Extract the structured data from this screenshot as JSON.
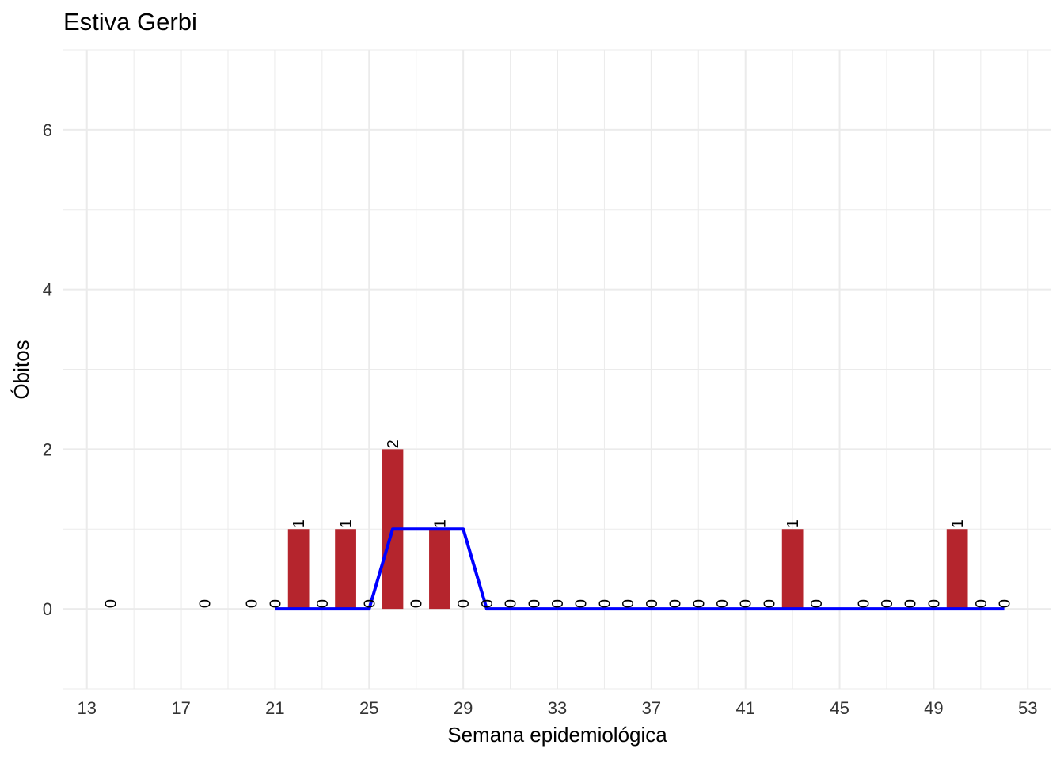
{
  "chart_data": {
    "type": "bar",
    "title": "Estiva Gerbi",
    "xlabel": "Semana epidemiológica",
    "ylabel": "Óbitos",
    "xlim": [
      12,
      54
    ],
    "ylim": [
      -1,
      7
    ],
    "x_ticks": [
      13,
      17,
      21,
      25,
      29,
      33,
      37,
      41,
      45,
      49,
      53
    ],
    "y_ticks": [
      0,
      2,
      4,
      6
    ],
    "grid": true,
    "bar_color": "#B5252D",
    "line_color": "#0000FF",
    "bars": {
      "weeks": [
        14,
        18,
        20,
        21,
        22,
        23,
        24,
        25,
        26,
        27,
        28,
        29,
        30,
        31,
        32,
        33,
        34,
        35,
        36,
        37,
        38,
        39,
        40,
        41,
        42,
        43,
        44,
        46,
        47,
        48,
        49,
        50,
        51,
        52
      ],
      "values": [
        0,
        0,
        0,
        0,
        1,
        0,
        1,
        0,
        2,
        0,
        1,
        0,
        0,
        0,
        0,
        0,
        0,
        0,
        0,
        0,
        0,
        0,
        0,
        0,
        0,
        1,
        0,
        0,
        0,
        0,
        0,
        1,
        0,
        0
      ]
    },
    "line": {
      "x": [
        21,
        22,
        23,
        24,
        25,
        26,
        27,
        28,
        29,
        30,
        31,
        32,
        33,
        34,
        35,
        36,
        37,
        38,
        39,
        40,
        41,
        42,
        43,
        44,
        45,
        46,
        47,
        48,
        49,
        50,
        51,
        52
      ],
      "y": [
        0,
        0,
        0,
        0,
        0,
        1,
        1,
        1,
        1,
        0,
        0,
        0,
        0,
        0,
        0,
        0,
        0,
        0,
        0,
        0,
        0,
        0,
        0,
        0,
        0,
        0,
        0,
        0,
        0,
        0,
        0,
        0
      ]
    }
  }
}
